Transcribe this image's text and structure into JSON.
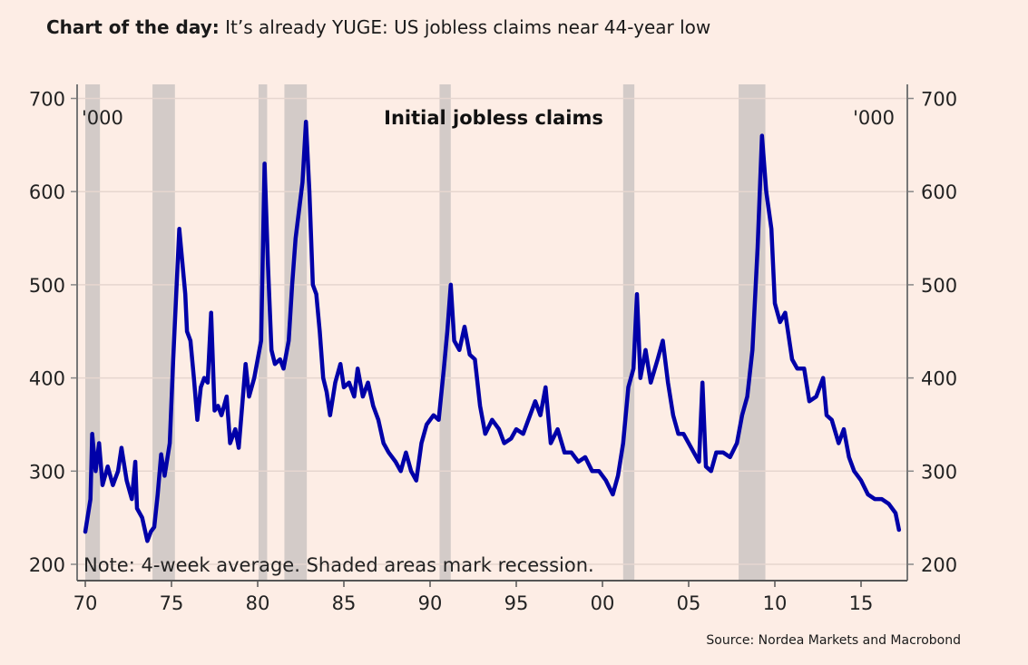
{
  "headline": {
    "prefix": "Chart of the day:",
    "text": " It’s already YUGE: US jobless claims near 44-year low"
  },
  "source": "Source: Nordea Markets and Macrobond",
  "colors": {
    "background": "#fdede5",
    "line": "#0000a8",
    "recession": "#d3cbc8",
    "grid": "#e6d6cf"
  },
  "chart_data": {
    "type": "line",
    "title": "Initial jobless claims",
    "unit_left": "'000",
    "unit_right": "'000",
    "note": "Note: 4-week average. Shaded areas mark recession.",
    "xlim": [
      1969.5,
      2017.7
    ],
    "ylim": [
      200,
      716
    ],
    "grid": true,
    "dual_y_axis": true,
    "x_ticks": [
      1970,
      1975,
      1980,
      1985,
      1990,
      1995,
      2000,
      2005,
      2010,
      2015
    ],
    "x_tick_labels": [
      "70",
      "75",
      "80",
      "85",
      "90",
      "95",
      "00",
      "05",
      "10",
      "15"
    ],
    "y_ticks": [
      200,
      300,
      400,
      500,
      600,
      700
    ],
    "y_tick_labels": [
      "200",
      "300",
      "400",
      "500",
      "600",
      "700"
    ],
    "recessions": [
      [
        1970.0,
        1970.85
      ],
      [
        1973.9,
        1975.2
      ],
      [
        1980.05,
        1980.55
      ],
      [
        1981.55,
        1982.85
      ],
      [
        1990.55,
        1991.2
      ],
      [
        2001.2,
        2001.85
      ],
      [
        2007.9,
        2009.45
      ]
    ],
    "series": [
      {
        "x": [
          1970.0,
          1970.3,
          1970.4,
          1970.6,
          1970.8,
          1971.0,
          1971.3,
          1971.6,
          1971.9,
          1972.1,
          1972.4,
          1972.7,
          1972.9,
          1973.0,
          1973.3,
          1973.6,
          1973.8,
          1974.0,
          1974.2,
          1974.4,
          1974.6,
          1974.9,
          1975.1,
          1975.3,
          1975.45,
          1975.6,
          1975.8,
          1975.9,
          1976.1,
          1976.3,
          1976.5,
          1976.7,
          1976.9,
          1977.1,
          1977.3,
          1977.5,
          1977.7,
          1977.9,
          1978.2,
          1978.4,
          1978.7,
          1978.9,
          1979.1,
          1979.3,
          1979.5,
          1979.8,
          1980.0,
          1980.2,
          1980.4,
          1980.6,
          1980.8,
          1981.0,
          1981.3,
          1981.5,
          1981.8,
          1982.0,
          1982.2,
          1982.4,
          1982.6,
          1982.8,
          1983.0,
          1983.2,
          1983.4,
          1983.6,
          1983.8,
          1984.0,
          1984.2,
          1984.5,
          1984.8,
          1985.0,
          1985.3,
          1985.6,
          1985.8,
          1986.1,
          1986.4,
          1986.7,
          1987.0,
          1987.3,
          1987.6,
          1988.0,
          1988.3,
          1988.6,
          1988.9,
          1989.2,
          1989.5,
          1989.8,
          1990.2,
          1990.5,
          1990.8,
          1991.0,
          1991.2,
          1991.4,
          1991.7,
          1992.0,
          1992.3,
          1992.6,
          1992.9,
          1993.2,
          1993.6,
          1994.0,
          1994.3,
          1994.7,
          1995.0,
          1995.4,
          1995.8,
          1996.1,
          1996.4,
          1996.7,
          1997.0,
          1997.4,
          1997.8,
          1998.2,
          1998.6,
          1999.0,
          1999.4,
          1999.8,
          2000.2,
          2000.6,
          2000.9,
          2001.2,
          2001.5,
          2001.8,
          2002.0,
          2002.2,
          2002.5,
          2002.8,
          2003.2,
          2003.5,
          2003.8,
          2004.1,
          2004.4,
          2004.7,
          2005.0,
          2005.3,
          2005.6,
          2005.8,
          2006.0,
          2006.3,
          2006.6,
          2007.0,
          2007.4,
          2007.8,
          2008.1,
          2008.4,
          2008.7,
          2009.0,
          2009.25,
          2009.5,
          2009.8,
          2010.0,
          2010.3,
          2010.6,
          2011.0,
          2011.3,
          2011.7,
          2012.0,
          2012.4,
          2012.8,
          2013.0,
          2013.3,
          2013.7,
          2014.0,
          2014.3,
          2014.6,
          2015.0,
          2015.4,
          2015.8,
          2016.2,
          2016.6,
          2017.0,
          2017.2
        ],
        "y": [
          235,
          270,
          340,
          300,
          330,
          285,
          305,
          285,
          300,
          325,
          290,
          270,
          310,
          260,
          250,
          225,
          235,
          240,
          275,
          318,
          295,
          330,
          420,
          500,
          560,
          530,
          490,
          450,
          440,
          400,
          355,
          390,
          400,
          395,
          470,
          365,
          370,
          360,
          380,
          330,
          345,
          325,
          370,
          415,
          380,
          400,
          420,
          440,
          630,
          520,
          430,
          415,
          420,
          410,
          440,
          500,
          550,
          580,
          610,
          675,
          600,
          500,
          490,
          450,
          400,
          385,
          360,
          395,
          415,
          390,
          395,
          380,
          410,
          380,
          395,
          370,
          355,
          330,
          320,
          310,
          300,
          320,
          300,
          290,
          330,
          350,
          360,
          355,
          410,
          450,
          500,
          440,
          430,
          455,
          425,
          420,
          370,
          340,
          355,
          345,
          330,
          335,
          345,
          340,
          360,
          375,
          360,
          390,
          330,
          345,
          320,
          320,
          310,
          315,
          300,
          300,
          290,
          275,
          295,
          330,
          390,
          410,
          490,
          400,
          430,
          395,
          420,
          440,
          395,
          360,
          340,
          340,
          330,
          320,
          310,
          395,
          305,
          300,
          320,
          320,
          315,
          330,
          360,
          380,
          430,
          540,
          660,
          600,
          560,
          480,
          460,
          470,
          420,
          410,
          410,
          375,
          380,
          400,
          360,
          355,
          330,
          345,
          315,
          300,
          290,
          275,
          270,
          270,
          265,
          255,
          237
        ]
      }
    ]
  }
}
